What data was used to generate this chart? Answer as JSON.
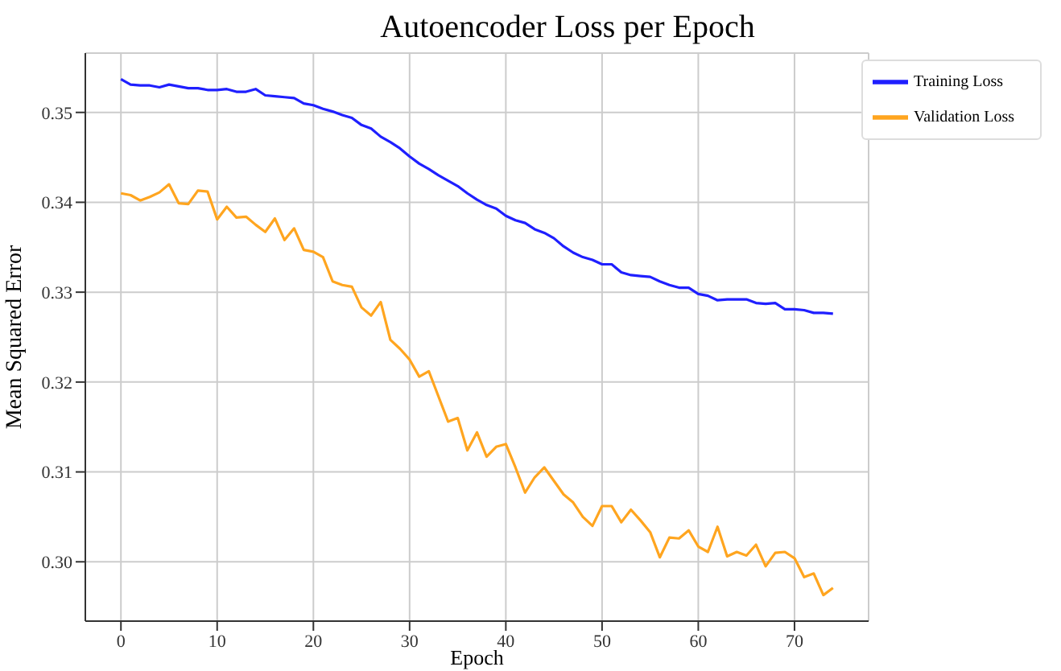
{
  "chart_data": {
    "type": "line",
    "title": "Autoencoder Loss per Epoch",
    "xlabel": "Epoch",
    "ylabel": "Mean Squared Error",
    "x": [
      0,
      1,
      2,
      3,
      4,
      5,
      6,
      7,
      8,
      9,
      10,
      11,
      12,
      13,
      14,
      15,
      16,
      17,
      18,
      19,
      20,
      21,
      22,
      23,
      24,
      25,
      26,
      27,
      28,
      29,
      30,
      31,
      32,
      33,
      34,
      35,
      36,
      37,
      38,
      39,
      40,
      41,
      42,
      43,
      44,
      45,
      46,
      47,
      48,
      49,
      50,
      51,
      52,
      53,
      54,
      55,
      56,
      57,
      58,
      59,
      60,
      61,
      62,
      63,
      64,
      65,
      66,
      67,
      68,
      69,
      70,
      71,
      72,
      73,
      74
    ],
    "series": [
      {
        "name": "Training Loss",
        "color": "#1f1fff",
        "values": [
          0.3537,
          0.3531,
          0.353,
          0.353,
          0.3528,
          0.3531,
          0.3529,
          0.3527,
          0.3527,
          0.3525,
          0.3525,
          0.3526,
          0.3523,
          0.3523,
          0.3526,
          0.3519,
          0.3518,
          0.3517,
          0.3516,
          0.351,
          0.3508,
          0.3504,
          0.3501,
          0.3497,
          0.3494,
          0.3486,
          0.3482,
          0.3473,
          0.3467,
          0.346,
          0.3451,
          0.3443,
          0.3437,
          0.343,
          0.3424,
          0.3418,
          0.341,
          0.3403,
          0.3397,
          0.3393,
          0.3385,
          0.338,
          0.3377,
          0.337,
          0.3366,
          0.336,
          0.3351,
          0.3344,
          0.3339,
          0.3336,
          0.3331,
          0.3331,
          0.3322,
          0.3319,
          0.3318,
          0.3317,
          0.3312,
          0.3308,
          0.3305,
          0.3305,
          0.3298,
          0.3296,
          0.3291,
          0.3292,
          0.3292,
          0.3292,
          0.3288,
          0.3287,
          0.3288,
          0.3281,
          0.3281,
          0.328,
          0.3277,
          0.3277,
          0.3276
        ]
      },
      {
        "name": "Validation Loss",
        "color": "#ffa51f",
        "values": [
          0.341,
          0.3408,
          0.3402,
          0.3406,
          0.3411,
          0.342,
          0.3399,
          0.3398,
          0.3413,
          0.3412,
          0.3381,
          0.3395,
          0.3383,
          0.3384,
          0.3375,
          0.3367,
          0.3382,
          0.3358,
          0.3371,
          0.3347,
          0.3345,
          0.3339,
          0.3312,
          0.3308,
          0.3306,
          0.3283,
          0.3274,
          0.3289,
          0.3247,
          0.3237,
          0.3225,
          0.3206,
          0.3212,
          0.3184,
          0.3156,
          0.316,
          0.3124,
          0.3144,
          0.3117,
          0.3128,
          0.3131,
          0.3105,
          0.3077,
          0.3094,
          0.3105,
          0.309,
          0.3075,
          0.3066,
          0.305,
          0.304,
          0.3062,
          0.3062,
          0.3044,
          0.3058,
          0.3046,
          0.3033,
          0.3005,
          0.3027,
          0.3026,
          0.3035,
          0.3017,
          0.3011,
          0.3039,
          0.3006,
          0.3011,
          0.3007,
          0.3019,
          0.2995,
          0.301,
          0.3011,
          0.3004,
          0.2983,
          0.2987,
          0.2963,
          0.2971
        ]
      }
    ],
    "xlim": [
      -3.7,
      77.7
    ],
    "xticks": [
      0,
      10,
      20,
      30,
      40,
      50,
      60,
      70
    ],
    "ylim": [
      0.2934,
      0.3566
    ],
    "yticks": [
      {
        "value": 0.3,
        "label": "0.30"
      },
      {
        "value": 0.31,
        "label": "0.31"
      },
      {
        "value": 0.32,
        "label": "0.32"
      },
      {
        "value": 0.33,
        "label": "0.33"
      },
      {
        "value": 0.34,
        "label": "0.34"
      },
      {
        "value": 0.35,
        "label": "0.35"
      }
    ],
    "grid": true,
    "legend": "top right",
    "marker": "none",
    "line_style": "solid"
  }
}
